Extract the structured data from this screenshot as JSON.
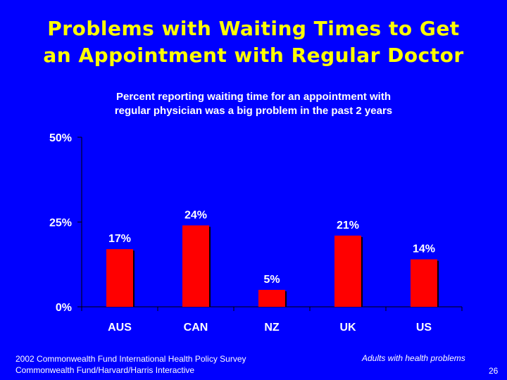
{
  "slide": {
    "title_line1": "Problems with Waiting Times to Get",
    "title_line2": "an Appointment with Regular Doctor",
    "page_number": "26"
  },
  "footer": {
    "source_line1": "2002 Commonwealth Fund International Health Policy Survey",
    "source_line2": "Commonwealth Fund/Harvard/Harris Interactive",
    "note": "Adults with health problems"
  },
  "colors": {
    "background": "#0000FF",
    "title": "#FFFF00",
    "bar": "#FF0000",
    "text": "#FFFFFF"
  },
  "chart_data": {
    "type": "bar",
    "title_line1": "Percent reporting waiting time for an appointment with",
    "title_line2": "regular physician was a big problem in the past 2 years",
    "categories": [
      "AUS",
      "CAN",
      "NZ",
      "UK",
      "US"
    ],
    "values": [
      17,
      24,
      5,
      21,
      14
    ],
    "data_labels": [
      "17%",
      "24%",
      "5%",
      "21%",
      "14%"
    ],
    "ylim": [
      0,
      50
    ],
    "yticks": [
      0,
      25,
      50
    ],
    "ytick_labels": [
      "0%",
      "25%",
      "50%"
    ],
    "xlabel": "",
    "ylabel": "",
    "grid": false,
    "legend": "none"
  }
}
